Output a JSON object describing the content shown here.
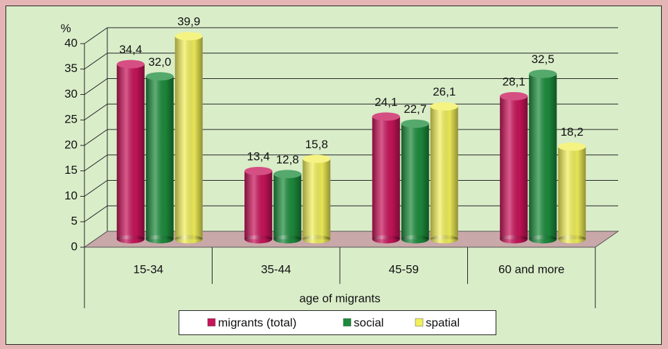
{
  "chart_data": {
    "type": "bar",
    "y_label": "%",
    "x_label": "age of migrants",
    "categories": [
      "15-34",
      "35-44",
      "45-59",
      "60 and more"
    ],
    "series": [
      {
        "name": "migrants (total)",
        "color": "#c8145a",
        "values": [
          34.4,
          13.4,
          24.1,
          28.1
        ],
        "value_labels": [
          "34,4",
          "13,4",
          "24,1",
          "28,1"
        ]
      },
      {
        "name": "social",
        "color": "#1c8c3c",
        "values": [
          32.0,
          12.8,
          22.7,
          32.5
        ],
        "value_labels": [
          "32,0",
          "12,8",
          "22,7",
          "32,5"
        ]
      },
      {
        "name": "spatial",
        "color": "#f2f05a",
        "values": [
          39.9,
          15.8,
          26.1,
          18.2
        ],
        "value_labels": [
          "39,9",
          "15,8",
          "26,1",
          "18,2"
        ]
      }
    ],
    "ylim": [
      0,
      40
    ],
    "yticks": [
      0,
      5,
      10,
      15,
      20,
      25,
      30,
      35,
      40
    ],
    "grid": true
  }
}
